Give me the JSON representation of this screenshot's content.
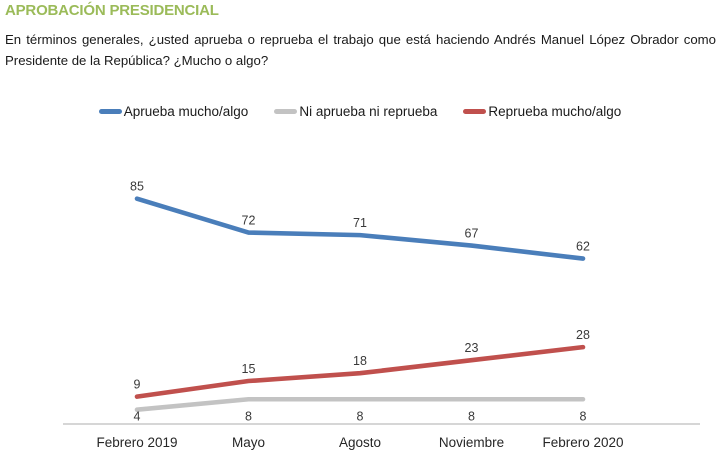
{
  "title": "APROBACIÓN PRESIDENCIAL",
  "question": "En términos generales, ¿usted aprueba o reprueba el trabajo que está haciendo Andrés Manuel López Obrador como Presidente de la República? ¿Mucho o algo?",
  "colors": {
    "title_green": "#9bbb59",
    "approve_blue": "#4a7eba",
    "neutral_gray": "#c3c3c3",
    "disapprove_red": "#c0504d",
    "axis_line": "#c9c9c9",
    "label_text": "#3a3a3a"
  },
  "chart_data": {
    "type": "line",
    "categories": [
      "Febrero 2019",
      "Mayo",
      "Agosto",
      "Noviembre",
      "Febrero 2020"
    ],
    "series": [
      {
        "name": "Aprueba mucho/algo",
        "color": "#4a7eba",
        "values": [
          85,
          72,
          71,
          67,
          62
        ],
        "label_position": "above"
      },
      {
        "name": "Ni aprueba ni reprueba",
        "color": "#c3c3c3",
        "values": [
          4,
          8,
          8,
          8,
          8
        ],
        "label_position": "below"
      },
      {
        "name": "Reprueba mucho/algo",
        "color": "#c0504d",
        "values": [
          9,
          15,
          18,
          23,
          28
        ],
        "label_position": "above"
      }
    ],
    "ylim": [
      0,
      90
    ],
    "grid": false,
    "legend_position": "top",
    "data_labels": true,
    "x_axis_line": true
  }
}
